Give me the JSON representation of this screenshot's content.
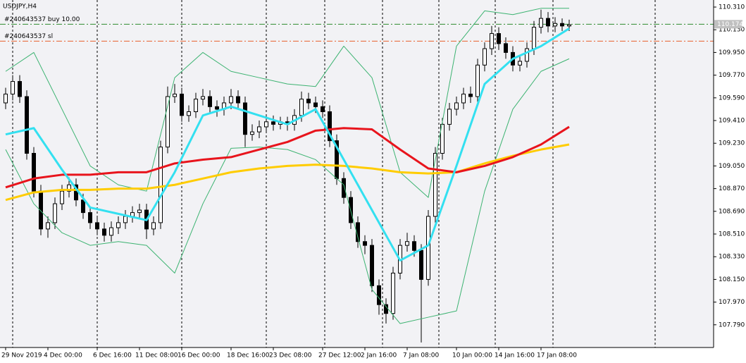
{
  "chart_data": {
    "type": "candlestick",
    "title": "USDJPY,H4",
    "categories": [
      "29 Nov 2019",
      null,
      null,
      null,
      null,
      null,
      "4 Dec 00:00",
      null,
      null,
      null,
      null,
      null,
      null,
      "6 Dec 16:00",
      null,
      null,
      null,
      null,
      null,
      "11 Dec 08:00",
      null,
      null,
      null,
      null,
      null,
      "16 Dec 00:00",
      null,
      null,
      null,
      null,
      null,
      null,
      "18 Dec 16:00",
      null,
      null,
      null,
      null,
      null,
      "23 Dec 08:00",
      null,
      null,
      null,
      null,
      null,
      null,
      "27 Dec 12:00",
      null,
      null,
      null,
      null,
      null,
      "2 Jan 16:00",
      null,
      null,
      null,
      null,
      null,
      "7 Jan 08:00",
      null,
      null,
      null,
      null,
      null,
      null,
      "10 Jan 00:00",
      null,
      null,
      null,
      null,
      null,
      "14 Jan 16:00",
      null,
      null,
      null,
      null,
      null,
      "17 Jan 08:00",
      null,
      null,
      null,
      null
    ],
    "open": [
      109.55,
      109.62,
      109.72,
      109.6,
      109.15,
      108.85,
      108.55,
      108.6,
      108.75,
      108.85,
      108.9,
      108.78,
      108.68,
      108.6,
      108.55,
      108.5,
      108.56,
      108.6,
      108.65,
      108.68,
      108.7,
      108.55,
      108.6,
      109.2,
      109.6,
      109.62,
      109.45,
      109.48,
      109.58,
      109.6,
      109.52,
      109.5,
      109.55,
      109.6,
      109.55,
      109.3,
      109.32,
      109.36,
      109.4,
      109.38,
      109.4,
      109.38,
      109.45,
      109.58,
      109.55,
      109.52,
      109.48,
      109.25,
      108.95,
      108.8,
      108.6,
      108.45,
      108.42,
      108.1,
      107.95,
      107.88,
      108.2,
      108.42,
      108.45,
      108.38,
      108.15,
      108.65,
      109.15,
      109.38,
      109.5,
      109.55,
      109.62,
      109.6,
      109.85,
      109.98,
      110.1,
      110.02,
      109.95,
      109.85,
      109.88,
      109.98,
      110.15,
      110.22,
      110.16,
      110.18,
      110.16
    ],
    "high": [
      109.67,
      109.77,
      109.77,
      109.65,
      109.2,
      108.9,
      108.65,
      108.8,
      108.9,
      108.96,
      108.95,
      108.83,
      108.73,
      108.65,
      108.6,
      108.61,
      108.65,
      108.7,
      108.73,
      108.75,
      108.75,
      108.65,
      109.25,
      109.68,
      109.7,
      109.67,
      109.53,
      109.63,
      109.66,
      109.65,
      109.57,
      109.6,
      109.66,
      109.65,
      109.6,
      109.38,
      109.41,
      109.45,
      109.45,
      109.44,
      109.44,
      109.5,
      109.64,
      109.63,
      109.6,
      109.57,
      109.53,
      109.3,
      109.0,
      108.85,
      108.65,
      108.5,
      108.47,
      108.15,
      108.0,
      108.25,
      108.47,
      108.52,
      108.5,
      108.43,
      108.7,
      109.2,
      109.43,
      109.55,
      109.6,
      109.67,
      109.68,
      109.9,
      110.03,
      110.16,
      110.15,
      110.07,
      110.0,
      109.93,
      110.03,
      110.2,
      110.29,
      110.27,
      110.23,
      110.22,
      110.21
    ],
    "low": [
      109.5,
      109.57,
      109.55,
      109.1,
      108.8,
      108.5,
      108.48,
      108.55,
      108.7,
      108.8,
      108.73,
      108.63,
      108.55,
      108.5,
      108.45,
      108.45,
      108.51,
      108.55,
      108.6,
      108.63,
      108.47,
      108.5,
      108.55,
      109.15,
      109.55,
      109.4,
      109.4,
      109.43,
      109.53,
      109.47,
      109.44,
      109.45,
      109.5,
      109.5,
      109.2,
      109.25,
      109.27,
      109.31,
      109.33,
      109.34,
      109.33,
      109.33,
      109.4,
      109.5,
      109.47,
      109.43,
      109.2,
      108.9,
      108.75,
      108.55,
      108.4,
      108.35,
      108.05,
      107.87,
      107.8,
      107.83,
      108.15,
      108.37,
      108.33,
      107.65,
      108.1,
      108.6,
      109.1,
      109.33,
      109.45,
      109.5,
      109.55,
      109.55,
      109.8,
      109.93,
      109.97,
      109.9,
      109.8,
      109.8,
      109.83,
      109.93,
      110.1,
      110.11,
      110.11,
      110.12,
      110.12
    ],
    "close": [
      109.62,
      109.72,
      109.6,
      109.15,
      108.85,
      108.55,
      108.6,
      108.75,
      108.85,
      108.9,
      108.78,
      108.68,
      108.6,
      108.55,
      108.5,
      108.56,
      108.6,
      108.65,
      108.68,
      108.7,
      108.55,
      108.6,
      109.2,
      109.6,
      109.62,
      109.45,
      109.48,
      109.58,
      109.6,
      109.52,
      109.5,
      109.55,
      109.6,
      109.55,
      109.3,
      109.32,
      109.36,
      109.4,
      109.38,
      109.4,
      109.38,
      109.45,
      109.58,
      109.55,
      109.52,
      109.48,
      109.25,
      108.95,
      108.8,
      108.6,
      108.45,
      108.42,
      108.1,
      107.95,
      107.88,
      108.2,
      108.42,
      108.45,
      108.38,
      108.15,
      108.65,
      109.15,
      109.38,
      109.5,
      109.55,
      109.62,
      109.6,
      109.85,
      109.98,
      110.1,
      110.02,
      109.95,
      109.85,
      109.88,
      109.98,
      110.15,
      110.22,
      110.16,
      110.18,
      110.16,
      110.17
    ],
    "series": [
      {
        "color": "#3cb371",
        "width": 1,
        "x": [
          0,
          4,
          8,
          12,
          16,
          20,
          24,
          28,
          32,
          36,
          40,
          44,
          48,
          52,
          56,
          60,
          64,
          68,
          72,
          76,
          80
        ],
        "values": [
          109.8,
          109.95,
          109.5,
          109.05,
          108.9,
          108.85,
          109.75,
          109.95,
          109.8,
          109.75,
          109.7,
          109.68,
          110.0,
          109.75,
          109.0,
          108.8,
          110.0,
          110.28,
          110.25,
          110.3,
          110.3
        ]
      },
      {
        "color": "#3cb371",
        "width": 1,
        "x": [
          0,
          4,
          8,
          12,
          16,
          20,
          24,
          28,
          32,
          36,
          40,
          44,
          48,
          52,
          56,
          60,
          64,
          68,
          72,
          76,
          80
        ],
        "values": [
          109.18,
          108.75,
          108.52,
          108.42,
          108.45,
          108.42,
          108.2,
          108.75,
          109.19,
          109.2,
          109.18,
          109.1,
          108.9,
          108.07,
          107.8,
          107.85,
          107.9,
          108.85,
          109.5,
          109.8,
          109.9
        ]
      },
      {
        "color": "#ffcc00",
        "width": 3,
        "x": [
          0,
          4,
          8,
          12,
          16,
          20,
          24,
          28,
          32,
          36,
          40,
          44,
          48,
          52,
          56,
          60,
          64,
          68,
          72,
          76,
          80
        ],
        "values": [
          108.78,
          108.84,
          108.86,
          108.86,
          108.87,
          108.87,
          108.9,
          108.95,
          109.0,
          109.03,
          109.05,
          109.06,
          109.05,
          109.03,
          109.0,
          108.99,
          109.0,
          109.07,
          109.13,
          109.18,
          109.22
        ]
      },
      {
        "color": "#e8141c",
        "width": 3,
        "x": [
          0,
          4,
          8,
          12,
          16,
          20,
          24,
          28,
          32,
          36,
          40,
          44,
          48,
          52,
          56,
          60,
          64,
          68,
          72,
          76,
          80
        ],
        "values": [
          108.88,
          108.95,
          108.98,
          108.98,
          109.0,
          109.0,
          109.07,
          109.1,
          109.12,
          109.18,
          109.24,
          109.33,
          109.35,
          109.34,
          109.18,
          109.03,
          109.0,
          109.05,
          109.12,
          109.22,
          109.36
        ]
      },
      {
        "color": "#33e0f0",
        "width": 3,
        "x": [
          0,
          4,
          8,
          12,
          16,
          20,
          24,
          28,
          32,
          36,
          40,
          44,
          48,
          52,
          56,
          60,
          64,
          68,
          72,
          76,
          80
        ],
        "values": [
          109.3,
          109.35,
          109.02,
          108.72,
          108.67,
          108.62,
          109.0,
          109.45,
          109.52,
          109.45,
          109.38,
          109.5,
          109.1,
          108.7,
          108.3,
          108.42,
          109.05,
          109.7,
          109.9,
          110.0,
          110.14
        ]
      }
    ],
    "order_lines": [
      {
        "label": "#240643537 buy 10.00",
        "price": 110.174,
        "color": "#2e8b2e"
      },
      {
        "label": "#240643537 sl",
        "price": 110.04,
        "color": "#e8602c"
      }
    ],
    "ylim": [
      107.61,
      110.366
    ],
    "yticks": [
      {
        "value": 110.31,
        "label": "110.310"
      },
      {
        "value": 110.13,
        "label": "110.130"
      },
      {
        "value": 109.95,
        "label": "109.950"
      },
      {
        "value": 109.77,
        "label": "109.770"
      },
      {
        "value": 109.59,
        "label": "109.590"
      },
      {
        "value": 109.41,
        "label": "109.410"
      },
      {
        "value": 109.23,
        "label": "109.230"
      },
      {
        "value": 109.05,
        "label": "109.050"
      },
      {
        "value": 108.87,
        "label": "108.870"
      },
      {
        "value": 108.69,
        "label": "108.690"
      },
      {
        "value": 108.51,
        "label": "108.510"
      },
      {
        "value": 108.33,
        "label": "108.330"
      },
      {
        "value": 108.15,
        "label": "108.150"
      },
      {
        "value": 107.97,
        "label": "107.970"
      },
      {
        "value": 107.79,
        "label": "107.790"
      }
    ],
    "grid": true,
    "bull_color": "#ffffff",
    "bear_color": "#000000"
  }
}
